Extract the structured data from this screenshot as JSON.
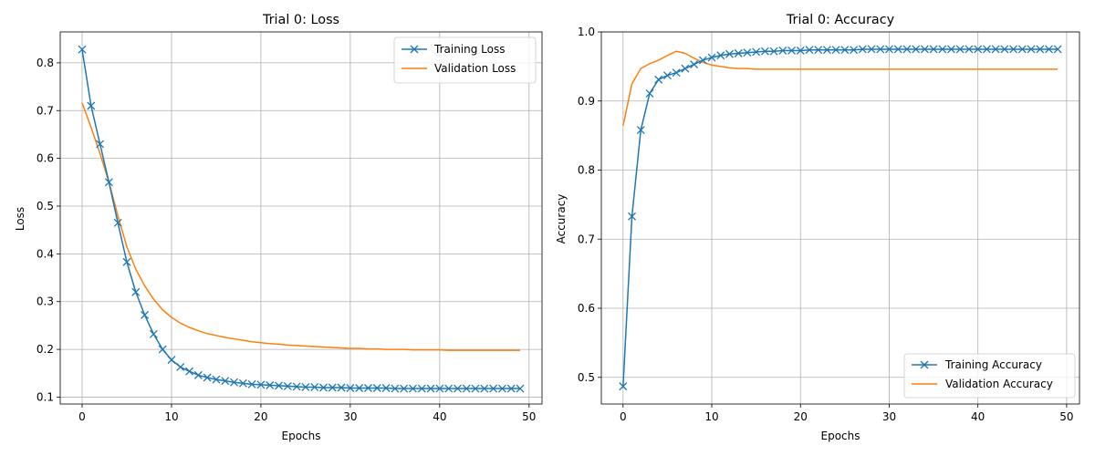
{
  "chart_data": [
    {
      "type": "line",
      "title": "Trial 0: Loss",
      "xlabel": "Epochs",
      "ylabel": "Loss",
      "xlim": [
        -2.45,
        51.45
      ],
      "ylim": [
        0.0856,
        0.8647
      ],
      "xticks": [
        0,
        10,
        20,
        30,
        40,
        50
      ],
      "yticks": [
        0.1,
        0.2,
        0.3,
        0.4,
        0.5,
        0.6,
        0.7,
        0.8
      ],
      "xtick_labels": [
        "0",
        "10",
        "20",
        "30",
        "40",
        "50"
      ],
      "ytick_labels": [
        "0.1",
        "0.2",
        "0.3",
        "0.4",
        "0.5",
        "0.6",
        "0.7",
        "0.8"
      ],
      "grid": true,
      "legend_position": "top-right",
      "series": [
        {
          "name": "Training Loss",
          "color": "#1f77b4",
          "marker": "x",
          "x": [
            0,
            1,
            2,
            3,
            4,
            5,
            6,
            7,
            8,
            9,
            10,
            11,
            12,
            13,
            14,
            15,
            16,
            17,
            18,
            19,
            20,
            21,
            22,
            23,
            24,
            25,
            26,
            27,
            28,
            29,
            30,
            31,
            32,
            33,
            34,
            35,
            36,
            37,
            38,
            39,
            40,
            41,
            42,
            43,
            44,
            45,
            46,
            47,
            48,
            49
          ],
          "values": [
            0.828,
            0.71,
            0.63,
            0.55,
            0.465,
            0.383,
            0.32,
            0.272,
            0.232,
            0.2,
            0.178,
            0.163,
            0.154,
            0.146,
            0.141,
            0.137,
            0.134,
            0.131,
            0.129,
            0.127,
            0.126,
            0.125,
            0.124,
            0.123,
            0.122,
            0.121,
            0.121,
            0.12,
            0.12,
            0.12,
            0.119,
            0.119,
            0.119,
            0.119,
            0.119,
            0.118,
            0.118,
            0.118,
            0.118,
            0.118,
            0.118,
            0.118,
            0.118,
            0.118,
            0.118,
            0.118,
            0.118,
            0.118,
            0.118,
            0.118
          ]
        },
        {
          "name": "Validation Loss",
          "color": "#ff7f0e",
          "marker": "none",
          "x": [
            0,
            1,
            2,
            3,
            4,
            5,
            6,
            7,
            8,
            9,
            10,
            11,
            12,
            13,
            14,
            15,
            16,
            17,
            18,
            19,
            20,
            21,
            22,
            23,
            24,
            25,
            26,
            27,
            28,
            29,
            30,
            31,
            32,
            33,
            34,
            35,
            36,
            37,
            38,
            39,
            40,
            41,
            42,
            43,
            44,
            45,
            46,
            47,
            48,
            49
          ],
          "values": [
            0.716,
            0.665,
            0.61,
            0.55,
            0.48,
            0.415,
            0.368,
            0.333,
            0.305,
            0.283,
            0.267,
            0.255,
            0.246,
            0.239,
            0.233,
            0.229,
            0.225,
            0.222,
            0.219,
            0.216,
            0.214,
            0.212,
            0.211,
            0.209,
            0.208,
            0.207,
            0.206,
            0.205,
            0.204,
            0.203,
            0.202,
            0.202,
            0.201,
            0.201,
            0.2,
            0.2,
            0.2,
            0.199,
            0.199,
            0.199,
            0.199,
            0.198,
            0.198,
            0.198,
            0.198,
            0.198,
            0.198,
            0.198,
            0.198,
            0.198
          ]
        }
      ]
    },
    {
      "type": "line",
      "title": "Trial 0: Accuracy",
      "xlabel": "Epochs",
      "ylabel": "Accuracy",
      "xlim": [
        -2.45,
        51.45
      ],
      "ylim": [
        0.4614,
        1.0
      ],
      "xticks": [
        0,
        10,
        20,
        30,
        40,
        50
      ],
      "yticks": [
        0.5,
        0.6,
        0.7,
        0.8,
        0.9,
        1.0
      ],
      "xtick_labels": [
        "0",
        "10",
        "20",
        "30",
        "40",
        "50"
      ],
      "ytick_labels": [
        "0.5",
        "0.6",
        "0.7",
        "0.8",
        "0.9",
        "1.0"
      ],
      "grid": true,
      "legend_position": "bottom-right",
      "series": [
        {
          "name": "Training Accuracy",
          "color": "#1f77b4",
          "marker": "x",
          "x": [
            0,
            1,
            2,
            3,
            4,
            5,
            6,
            7,
            8,
            9,
            10,
            11,
            12,
            13,
            14,
            15,
            16,
            17,
            18,
            19,
            20,
            21,
            22,
            23,
            24,
            25,
            26,
            27,
            28,
            29,
            30,
            31,
            32,
            33,
            34,
            35,
            36,
            37,
            38,
            39,
            40,
            41,
            42,
            43,
            44,
            45,
            46,
            47,
            48,
            49
          ],
          "values": [
            0.487,
            0.733,
            0.858,
            0.911,
            0.931,
            0.937,
            0.941,
            0.947,
            0.953,
            0.959,
            0.963,
            0.966,
            0.968,
            0.969,
            0.97,
            0.971,
            0.972,
            0.972,
            0.973,
            0.973,
            0.973,
            0.974,
            0.974,
            0.974,
            0.974,
            0.974,
            0.974,
            0.975,
            0.975,
            0.975,
            0.975,
            0.975,
            0.975,
            0.975,
            0.975,
            0.975,
            0.975,
            0.975,
            0.975,
            0.975,
            0.975,
            0.975,
            0.975,
            0.975,
            0.975,
            0.975,
            0.975,
            0.975,
            0.975,
            0.975
          ]
        },
        {
          "name": "Validation Accuracy",
          "color": "#ff7f0e",
          "marker": "none",
          "x": [
            0,
            1,
            2,
            3,
            4,
            5,
            6,
            7,
            8,
            9,
            10,
            11,
            12,
            13,
            14,
            15,
            16,
            17,
            18,
            19,
            20,
            21,
            22,
            23,
            24,
            25,
            26,
            27,
            28,
            29,
            30,
            31,
            32,
            33,
            34,
            35,
            36,
            37,
            38,
            39,
            40,
            41,
            42,
            43,
            44,
            45,
            46,
            47,
            48,
            49
          ],
          "values": [
            0.864,
            0.925,
            0.947,
            0.954,
            0.959,
            0.966,
            0.972,
            0.969,
            0.962,
            0.956,
            0.952,
            0.95,
            0.948,
            0.947,
            0.947,
            0.946,
            0.946,
            0.946,
            0.946,
            0.946,
            0.946,
            0.946,
            0.946,
            0.946,
            0.946,
            0.946,
            0.946,
            0.946,
            0.946,
            0.946,
            0.946,
            0.946,
            0.946,
            0.946,
            0.946,
            0.946,
            0.946,
            0.946,
            0.946,
            0.946,
            0.946,
            0.946,
            0.946,
            0.946,
            0.946,
            0.946,
            0.946,
            0.946,
            0.946,
            0.946
          ]
        }
      ]
    }
  ]
}
